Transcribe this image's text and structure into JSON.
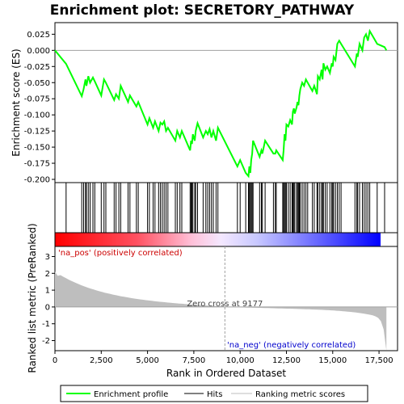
{
  "chart_data": {
    "type": "line",
    "title": "Enrichment plot: SECRETORY_PATHWAY",
    "xlabel": "Rank in Ordered Dataset",
    "ylabel_top": "Enrichment score (ES)",
    "ylabel_bottom": "Ranked list metric (PreRanked)",
    "xlim": [
      0,
      18500
    ],
    "x_ticks": [
      0,
      2500,
      5000,
      7500,
      10000,
      12500,
      15000,
      17500
    ],
    "x_tick_labels": [
      "0",
      "2,500",
      "5,000",
      "7,500",
      "10,000",
      "12,500",
      "15,000",
      "17,500"
    ],
    "es_ylim": [
      -0.205,
      0.043
    ],
    "es_ticks": [
      0.025,
      0.0,
      -0.025,
      -0.05,
      -0.075,
      -0.1,
      -0.125,
      -0.15,
      -0.175,
      -0.2
    ],
    "es_tick_labels": [
      "0.025",
      "0.000",
      "-0.025",
      "-0.050",
      "-0.075",
      "-0.100",
      "-0.125",
      "-0.150",
      "-0.175",
      "-0.200"
    ],
    "metric_ylim": [
      -2.6,
      3.6
    ],
    "metric_ticks": [
      3,
      2,
      1,
      0,
      -1,
      -2
    ],
    "metric_tick_labels": [
      "3",
      "2",
      "1",
      "0",
      "-1",
      "-2"
    ],
    "n_genes": 17900,
    "zero_cross_rank": 9177,
    "zero_cross_label": "Zero cross at 9177",
    "pos_label": "'na_pos' (positively correlated)",
    "neg_label": "'na_neg' (negatively correlated)",
    "series": [
      {
        "name": "Enrichment profile",
        "color": "#00ff00",
        "x": [
          0,
          600,
          1450,
          1550,
          1650,
          1700,
          1800,
          1900,
          2050,
          2150,
          2500,
          2650,
          2750,
          3200,
          3300,
          3450,
          3550,
          3950,
          4050,
          4400,
          4500,
          5000,
          5100,
          5300,
          5400,
          5600,
          5700,
          5800,
          5900,
          6000,
          6100,
          6500,
          6600,
          6750,
          6850,
          7300,
          7350,
          7400,
          7450,
          7550,
          7600,
          7700,
          8000,
          8150,
          8250,
          8350,
          8450,
          8550,
          8700,
          8800,
          9850,
          10000,
          10300,
          10450,
          10500,
          10550,
          10600,
          10650,
          10700,
          11050,
          11150,
          11200,
          11350,
          11800,
          11900,
          11950,
          12300,
          12350,
          12400,
          12450,
          12500,
          12600,
          12700,
          12800,
          12850,
          12900,
          12950,
          13050,
          13100,
          13150,
          13200,
          13250,
          13350,
          13450,
          13550,
          13650,
          13900,
          14000,
          14150,
          14200,
          14300,
          14400,
          14450,
          14500,
          14600,
          14700,
          14850,
          14950,
          15000,
          15050,
          15150,
          15250,
          15350,
          15450,
          16200,
          16300,
          16350,
          16450,
          16600,
          16700,
          16800,
          16900,
          17000,
          17400,
          17800,
          17900
        ],
        "y": [
          0.0,
          -0.021,
          -0.071,
          -0.06,
          -0.045,
          -0.055,
          -0.04,
          -0.05,
          -0.042,
          -0.048,
          -0.07,
          -0.045,
          -0.05,
          -0.077,
          -0.068,
          -0.075,
          -0.055,
          -0.08,
          -0.07,
          -0.087,
          -0.08,
          -0.115,
          -0.105,
          -0.12,
          -0.11,
          -0.125,
          -0.112,
          -0.115,
          -0.11,
          -0.125,
          -0.12,
          -0.14,
          -0.125,
          -0.135,
          -0.125,
          -0.155,
          -0.14,
          -0.145,
          -0.13,
          -0.14,
          -0.125,
          -0.113,
          -0.135,
          -0.125,
          -0.13,
          -0.122,
          -0.135,
          -0.125,
          -0.14,
          -0.12,
          -0.18,
          -0.17,
          -0.19,
          -0.195,
          -0.18,
          -0.19,
          -0.17,
          -0.16,
          -0.14,
          -0.165,
          -0.155,
          -0.16,
          -0.14,
          -0.16,
          -0.16,
          -0.155,
          -0.17,
          -0.155,
          -0.13,
          -0.14,
          -0.115,
          -0.118,
          -0.108,
          -0.115,
          -0.095,
          -0.09,
          -0.098,
          -0.088,
          -0.08,
          -0.085,
          -0.07,
          -0.06,
          -0.05,
          -0.055,
          -0.045,
          -0.05,
          -0.063,
          -0.055,
          -0.068,
          -0.04,
          -0.045,
          -0.03,
          -0.045,
          -0.02,
          -0.03,
          -0.025,
          -0.035,
          -0.02,
          -0.025,
          -0.01,
          -0.015,
          0.01,
          0.015,
          0.01,
          -0.025,
          -0.005,
          -0.01,
          0.01,
          0.0,
          0.02,
          0.025,
          0.015,
          0.03,
          0.01,
          0.005,
          0.0
        ],
        "line_width": 2
      }
    ],
    "hits": [
      600,
      1450,
      1550,
      1650,
      1700,
      1800,
      1900,
      2050,
      2150,
      2500,
      2650,
      2750,
      3200,
      3300,
      3450,
      3550,
      3950,
      4050,
      4400,
      4500,
      5000,
      5100,
      5300,
      5400,
      5600,
      5700,
      5800,
      5900,
      6000,
      6100,
      6500,
      6600,
      6750,
      6850,
      7300,
      7350,
      7400,
      7450,
      7550,
      7600,
      7700,
      8000,
      8150,
      8250,
      8350,
      8450,
      8550,
      8700,
      8800,
      9850,
      10000,
      10300,
      10450,
      10500,
      10550,
      10600,
      10650,
      10700,
      11050,
      11150,
      11200,
      11350,
      11800,
      11900,
      11950,
      12300,
      12350,
      12400,
      12450,
      12500,
      12600,
      12700,
      12800,
      12850,
      12900,
      12950,
      13050,
      13100,
      13150,
      13200,
      13250,
      13350,
      13450,
      13550,
      13650,
      13900,
      14000,
      14150,
      14200,
      14300,
      14400,
      14450,
      14500,
      14600,
      14700,
      14850,
      14950,
      15000,
      15050,
      15150,
      15250,
      15350,
      15450,
      16200,
      16300,
      16350,
      16450,
      16600,
      16700,
      16800,
      16900,
      17000,
      17400,
      17800
    ],
    "legend": [
      {
        "label": "Enrichment profile",
        "color": "#00ff00",
        "kind": "line"
      },
      {
        "label": "Hits",
        "color": "#000000",
        "kind": "line"
      },
      {
        "label": "Ranking metric scores",
        "color": "#bebebe",
        "kind": "line"
      }
    ],
    "legend_placement": "bottom",
    "colors": {
      "pos_text": "#cc0000",
      "neg_text": "#0000cc",
      "metric_fill": "#bebebe",
      "zero_line": "#a0a0a0"
    }
  }
}
